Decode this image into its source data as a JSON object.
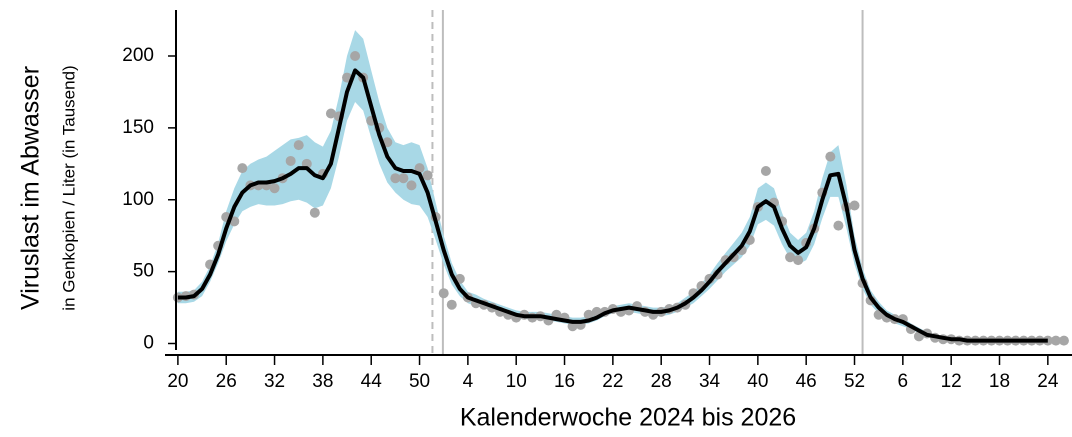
{
  "chart_data": {
    "type": "line",
    "ylabel": "Viruslast im Abwasser",
    "ylabel_sub": "in Genkopien / Liter (in Tausend)",
    "xlabel": "Kalenderwoche 2024 bis 2026",
    "xlim": [
      -1.6,
      111
    ],
    "ylim": [
      -8,
      232
    ],
    "xticks": [
      {
        "value": 0,
        "label": "20"
      },
      {
        "value": 6,
        "label": "26"
      },
      {
        "value": 12,
        "label": "32"
      },
      {
        "value": 18,
        "label": "38"
      },
      {
        "value": 24,
        "label": "44"
      },
      {
        "value": 30,
        "label": "50"
      },
      {
        "value": 36,
        "label": "4"
      },
      {
        "value": 42,
        "label": "10"
      },
      {
        "value": 48,
        "label": "16"
      },
      {
        "value": 54,
        "label": "22"
      },
      {
        "value": 60,
        "label": "28"
      },
      {
        "value": 66,
        "label": "34"
      },
      {
        "value": 72,
        "label": "40"
      },
      {
        "value": 78,
        "label": "46"
      },
      {
        "value": 84,
        "label": "52"
      },
      {
        "value": 90,
        "label": "6"
      },
      {
        "value": 96,
        "label": "12"
      },
      {
        "value": 102,
        "label": "18"
      },
      {
        "value": 108,
        "label": "24"
      }
    ],
    "yticks": [
      0,
      50,
      100,
      150,
      200
    ],
    "vlines": [
      {
        "x": 31.6,
        "style": "dashed",
        "color": "#bdbdbd"
      },
      {
        "x": 32.9,
        "style": "solid",
        "color": "#bdbdbd"
      },
      {
        "x": 85,
        "style": "solid",
        "color": "#bdbdbd"
      }
    ],
    "x": [
      0,
      1,
      2,
      3,
      4,
      5,
      6,
      7,
      8,
      9,
      10,
      11,
      12,
      13,
      14,
      15,
      16,
      17,
      18,
      19,
      20,
      21,
      22,
      23,
      24,
      25,
      26,
      27,
      28,
      29,
      30,
      31,
      32,
      33,
      34,
      35,
      36,
      37,
      38,
      39,
      40,
      41,
      42,
      43,
      44,
      45,
      46,
      47,
      48,
      49,
      50,
      51,
      52,
      53,
      54,
      55,
      56,
      57,
      58,
      59,
      60,
      61,
      62,
      63,
      64,
      65,
      66,
      67,
      68,
      69,
      70,
      71,
      72,
      73,
      74,
      75,
      76,
      77,
      78,
      79,
      80,
      81,
      82,
      83,
      84,
      85,
      86,
      87,
      88,
      89,
      90,
      91,
      92,
      93,
      94,
      95,
      96,
      97,
      98,
      99,
      100,
      101,
      102,
      103,
      104,
      105,
      106,
      107,
      108
    ],
    "band": {
      "color": "#a8d8e6",
      "lower": [
        28,
        28,
        29,
        33,
        43,
        56,
        71,
        83,
        92,
        95,
        97,
        96,
        96,
        97,
        99,
        100,
        98,
        94,
        96,
        108,
        130,
        155,
        168,
        162,
        143,
        125,
        112,
        105,
        100,
        97,
        96,
        88,
        72,
        55,
        41,
        33,
        28,
        26,
        25,
        23,
        21,
        19,
        17,
        17,
        17,
        17,
        16,
        15,
        14,
        13,
        13,
        14,
        16,
        19,
        21,
        22,
        22,
        21,
        20,
        19,
        19,
        20,
        22,
        25,
        28,
        33,
        38,
        44,
        50,
        55,
        60,
        68,
        83,
        86,
        82,
        69,
        59,
        55,
        58,
        69,
        87,
        102,
        102,
        80,
        55,
        38,
        27,
        21,
        17,
        14,
        12,
        10,
        7,
        5,
        4,
        3,
        2,
        2,
        1,
        1,
        1,
        1,
        1,
        1,
        1,
        1,
        1,
        1,
        1
      ],
      "upper": [
        36,
        36,
        37,
        43,
        54,
        70,
        92,
        108,
        120,
        125,
        128,
        130,
        134,
        138,
        142,
        143,
        145,
        140,
        137,
        148,
        172,
        200,
        218,
        212,
        190,
        168,
        150,
        140,
        138,
        140,
        138,
        122,
        98,
        75,
        56,
        44,
        36,
        34,
        31,
        29,
        27,
        25,
        23,
        22,
        22,
        22,
        21,
        20,
        19,
        18,
        18,
        19,
        21,
        24,
        26,
        27,
        28,
        27,
        26,
        25,
        25,
        26,
        28,
        32,
        36,
        42,
        48,
        56,
        63,
        70,
        77,
        88,
        108,
        112,
        108,
        91,
        77,
        72,
        77,
        92,
        115,
        133,
        138,
        110,
        75,
        52,
        37,
        29,
        23,
        20,
        18,
        14,
        11,
        8,
        6,
        5,
        4,
        4,
        3,
        3,
        3,
        3,
        3,
        3,
        3,
        3,
        3,
        3,
        3
      ]
    },
    "line": {
      "color": "#000000",
      "values": [
        32,
        32,
        33,
        38,
        48,
        62,
        80,
        95,
        105,
        110,
        112,
        112,
        113,
        115,
        118,
        122,
        122,
        117,
        115,
        125,
        150,
        175,
        190,
        185,
        165,
        145,
        130,
        122,
        120,
        120,
        118,
        105,
        85,
        65,
        48,
        38,
        32,
        30,
        28,
        26,
        24,
        22,
        20,
        19,
        19,
        19,
        18,
        17,
        16,
        15,
        15,
        16,
        18,
        21,
        23,
        24,
        25,
        24,
        23,
        22,
        22,
        23,
        25,
        28,
        32,
        37,
        43,
        50,
        56,
        62,
        68,
        78,
        95,
        99,
        95,
        80,
        68,
        63,
        67,
        80,
        100,
        117,
        118,
        95,
        65,
        45,
        32,
        25,
        20,
        17,
        15,
        12,
        9,
        6,
        5,
        4,
        3,
        3,
        2,
        2,
        2,
        2,
        2,
        2,
        2,
        2,
        2,
        2,
        2
      ]
    },
    "points": {
      "color": "#a6a6a6",
      "x": [
        0,
        1,
        2,
        4,
        5,
        6,
        7,
        8,
        9,
        10,
        11,
        12,
        13,
        14,
        15,
        16,
        17,
        18,
        19,
        20,
        21,
        22,
        23,
        24,
        25,
        26,
        27,
        28,
        29,
        30,
        31,
        32,
        33,
        34,
        35,
        36,
        37,
        38,
        39,
        40,
        41,
        42,
        43,
        44,
        45,
        46,
        47,
        48,
        49,
        50,
        51,
        52,
        53,
        54,
        55,
        56,
        57,
        58,
        59,
        60,
        61,
        62,
        63,
        64,
        65,
        66,
        67,
        68,
        69,
        70,
        71,
        72,
        73,
        74,
        75,
        76,
        77,
        78,
        79,
        80,
        81,
        82,
        83,
        84,
        85,
        86,
        87,
        88,
        89,
        90,
        91,
        92,
        93,
        94,
        95,
        96,
        97,
        98,
        99,
        100,
        101,
        102,
        103,
        104,
        105,
        106,
        107,
        108,
        109,
        110
      ],
      "y": [
        32,
        33,
        34,
        55,
        68,
        88,
        85,
        122,
        110,
        110,
        110,
        108,
        115,
        127,
        138,
        125,
        91,
        118,
        160,
        158,
        185,
        200,
        185,
        155,
        150,
        140,
        115,
        115,
        110,
        122,
        117,
        88,
        35,
        27,
        45,
        32,
        28,
        27,
        25,
        22,
        20,
        18,
        20,
        18,
        19,
        16,
        20,
        18,
        12,
        13,
        20,
        22,
        22,
        24,
        22,
        23,
        26,
        22,
        20,
        22,
        24,
        25,
        27,
        35,
        40,
        45,
        48,
        58,
        60,
        65,
        72,
        95,
        120,
        98,
        85,
        60,
        58,
        70,
        80,
        105,
        130,
        82,
        95,
        96,
        42,
        30,
        20,
        18,
        17,
        17,
        10,
        5,
        7,
        4,
        3,
        3,
        2,
        2,
        2,
        2,
        2,
        2,
        2,
        2,
        2,
        2,
        2,
        2,
        2,
        2
      ]
    }
  }
}
